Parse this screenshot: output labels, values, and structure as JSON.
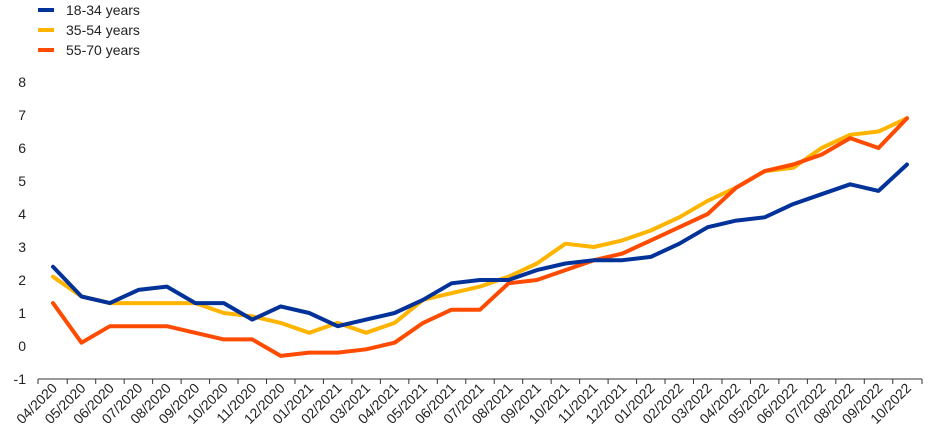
{
  "chart_data": {
    "type": "line",
    "categories": [
      "04/2020",
      "05/2020",
      "06/2020",
      "07/2020",
      "08/2020",
      "09/2020",
      "10/2020",
      "11/2020",
      "12/2020",
      "01/2021",
      "02/2021",
      "03/2021",
      "04/2021",
      "05/2021",
      "06/2021",
      "07/2021",
      "08/2021",
      "09/2021",
      "10/2021",
      "11/2021",
      "12/2021",
      "01/2022",
      "02/2022",
      "03/2022",
      "04/2022",
      "05/2022",
      "06/2022",
      "07/2022",
      "08/2022",
      "09/2022",
      "10/2022"
    ],
    "series": [
      {
        "name": "18-34 years",
        "color": "#003299",
        "values": [
          2.4,
          1.5,
          1.3,
          1.7,
          1.8,
          1.3,
          1.3,
          0.8,
          1.2,
          1.0,
          0.6,
          0.8,
          1.0,
          1.4,
          1.9,
          2.0,
          2.0,
          2.3,
          2.5,
          2.6,
          2.6,
          2.7,
          3.1,
          3.6,
          3.8,
          3.9,
          4.3,
          4.6,
          4.9,
          4.7,
          5.5
        ]
      },
      {
        "name": "35-54 years",
        "color": "#FFB400",
        "values": [
          2.1,
          1.5,
          1.3,
          1.3,
          1.3,
          1.3,
          1.0,
          0.9,
          0.7,
          0.4,
          0.7,
          0.4,
          0.7,
          1.4,
          1.6,
          1.8,
          2.1,
          2.5,
          3.1,
          3.0,
          3.2,
          3.5,
          3.9,
          4.4,
          4.8,
          5.3,
          5.4,
          6.0,
          6.4,
          6.5,
          6.9
        ]
      },
      {
        "name": "55-70 years",
        "color": "#FF4B00",
        "values": [
          1.3,
          0.1,
          0.6,
          0.6,
          0.6,
          0.4,
          0.2,
          0.2,
          -0.3,
          -0.2,
          -0.2,
          -0.1,
          0.1,
          0.7,
          1.1,
          1.1,
          1.9,
          2.0,
          2.3,
          2.6,
          2.8,
          3.2,
          3.6,
          4.0,
          4.8,
          5.3,
          5.5,
          5.8,
          6.3,
          6.0,
          6.9
        ]
      }
    ],
    "ylim": [
      -1,
      8
    ],
    "yticks": [
      -1,
      0,
      1,
      2,
      3,
      4,
      5,
      6,
      7,
      8
    ],
    "grid": false,
    "legend_position": "top-left"
  }
}
